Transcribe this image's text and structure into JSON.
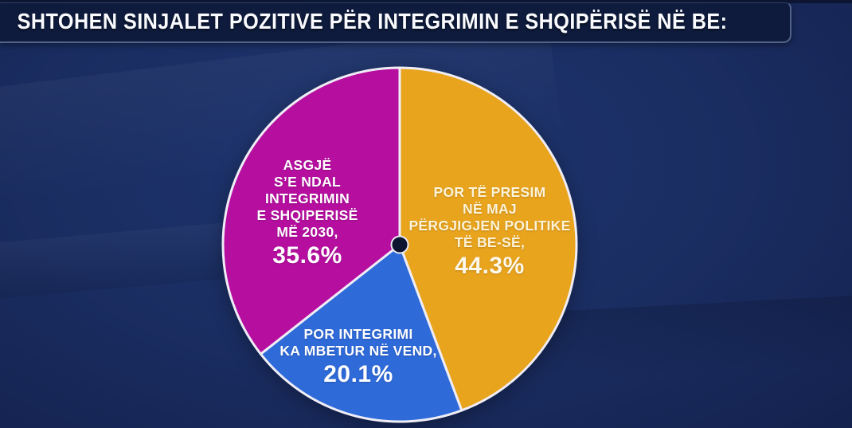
{
  "header": {
    "title": "SHTOHEN SINJALET POZITIVE PËR INTEGRIMIN E SHQIPËRISË NË BE:"
  },
  "chart_data": {
    "type": "pie",
    "title": "SHTOHEN SINJALET POZITIVE PËR INTEGRIMIN E SHQIPËRISË NË BE:",
    "start_angle_deg": 0,
    "direction": "clockwise",
    "total": 100,
    "slices": [
      {
        "name": "por-te-presim-ne-maj-pergjigjen-politike-te-be-se",
        "label_lines": [
          "POR TË PRESIM",
          "NË MAJ",
          "PËRGJIGJEN POLITIKE",
          "TË BE-SË,"
        ],
        "value": 44.3,
        "percent_label": "44.3%",
        "color": "#E9A41E",
        "text_color": "#FCF3D8",
        "percent_color": "#FDF8EA"
      },
      {
        "name": "por-integrimi-ka-mbetur-ne-vend",
        "label_lines": [
          "POR INTEGRIMI",
          "KA MBETUR NË VEND,"
        ],
        "value": 20.1,
        "percent_label": "20.1%",
        "color": "#2F6AD9",
        "text_color": "#FFFFFF",
        "percent_color": "#FFFFFF"
      },
      {
        "name": "asgje-se-ndal-integrimin-e-shqiperise-me-2030",
        "label_lines": [
          "ASGJË",
          "S’E NDAL",
          "INTEGRIMIN",
          "E SHQIPERISË",
          "MË 2030,"
        ],
        "value": 35.6,
        "percent_label": "35.6%",
        "color": "#B60FA0",
        "text_color": "#FFFFFF",
        "percent_color": "#FFFFFF"
      }
    ],
    "slice_border_color": "#EFEDF5",
    "center_dot_color": "#0D1530",
    "center_dot_ring_color": "#E9E8F2"
  },
  "colors": {
    "background_center": "#1E3570",
    "background_edge": "#121D45",
    "header_box": "#0E1B3C",
    "header_border": "#94AAD6",
    "header_text": "#FAFBFF"
  }
}
